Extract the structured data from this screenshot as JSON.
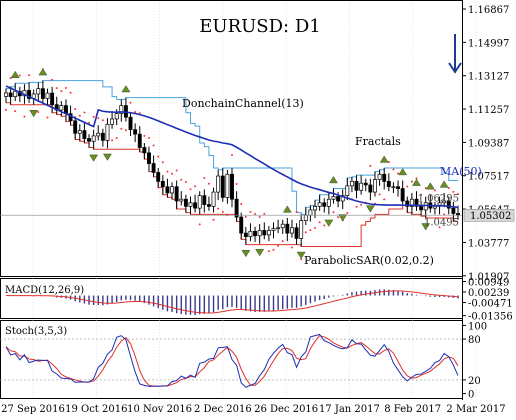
{
  "chart_data": {
    "type": "candlestick",
    "title": "EURUSD: D1",
    "instrument": "EURUSD",
    "timeframe": "D1",
    "trend_arrow": "down",
    "colors": {
      "frame": "#000000",
      "grid": "#c8c8c8",
      "candle_up": "#ffffff",
      "candle_down": "#000000",
      "donchian": "#4aa3df",
      "donchian_lower": "#e0302a",
      "ma": "#1c2fb5",
      "sar": "#ff3333",
      "fractal": "#6b8e23",
      "macd_hist": "#3a3a8a",
      "macd_signal": "#e0302a",
      "stoch_k": "#1c2fb5",
      "stoch_d": "#e0302a",
      "price_tag": "#d8d8d8",
      "label_gray": "#444444"
    },
    "x_tick_labels": [
      "27 Sep 2016",
      "19 Oct 2016",
      "10 Nov 2016",
      "2 Dec 2016",
      "26 Dec 2016",
      "17 Jan 2017",
      "8 Feb 2017",
      "2 Mar 2017"
    ],
    "price_panel": {
      "ylim": [
        1.0195,
        1.1726
      ],
      "y_tick_labels": [
        "1.16867",
        "1.14997",
        "1.13127",
        "1.11257",
        "1.09387",
        "1.07517",
        "1.05647",
        "1.03777",
        "1.01907"
      ],
      "price_labels": [
        {
          "text": "1.06295",
          "value": 1.06295,
          "style": "plain"
        },
        {
          "text": "1.0495",
          "value": 1.0495,
          "style": "plain"
        },
        {
          "text": "1.05302",
          "value": 1.05302,
          "style": "tag"
        }
      ],
      "annotations": [
        "DonchainChannel(13)",
        "Fractals",
        "MA(50)",
        "ParabolicSAR(0.02,0.2)"
      ],
      "closes": [
        1.1216,
        1.1195,
        1.1225,
        1.12,
        1.123,
        1.1185,
        1.121,
        1.124,
        1.1185,
        1.1215,
        1.115,
        1.112,
        1.1145,
        1.11,
        1.106,
        1.099,
        1.1005,
        1.096,
        1.0945,
        1.0975,
        1.099,
        1.095,
        1.104,
        1.107,
        1.11,
        1.1145,
        1.108,
        1.101,
        1.0985,
        1.091,
        1.088,
        1.082,
        1.077,
        1.072,
        1.069,
        1.0655,
        1.069,
        1.061,
        1.062,
        1.058,
        1.06,
        1.057,
        1.064,
        1.059,
        1.058,
        1.066,
        1.075,
        1.063,
        1.076,
        1.062,
        1.052,
        1.043,
        1.041,
        1.044,
        1.0415,
        1.0445,
        1.042,
        1.0445,
        1.0455,
        1.046,
        1.048,
        1.043,
        1.046,
        1.04,
        1.05,
        1.053,
        1.056,
        1.058,
        1.06,
        1.058,
        1.062,
        1.0635,
        1.061,
        1.064,
        1.0695,
        1.072,
        1.067,
        1.071,
        1.07,
        1.066,
        1.073,
        1.076,
        1.072,
        1.069,
        1.069,
        1.068,
        1.061,
        1.058,
        1.062,
        1.058,
        1.056,
        1.06,
        1.057,
        1.058,
        1.06,
        1.061,
        1.057,
        1.054,
        1.053
      ]
    },
    "macd_panel": {
      "label": "MACD(12,26,9)",
      "ylim": [
        -0.0145,
        0.0105
      ],
      "y_tick_labels": [
        "0.00949",
        "0.00239",
        "-0.00471",
        "-0.01356"
      ]
    },
    "stoch_panel": {
      "label": "Stoch(3,5,3)",
      "ylim": [
        -5,
        105
      ],
      "y_tick_labels": [
        "100",
        "80",
        "20",
        "0"
      ],
      "levels": [
        80,
        20
      ]
    }
  }
}
